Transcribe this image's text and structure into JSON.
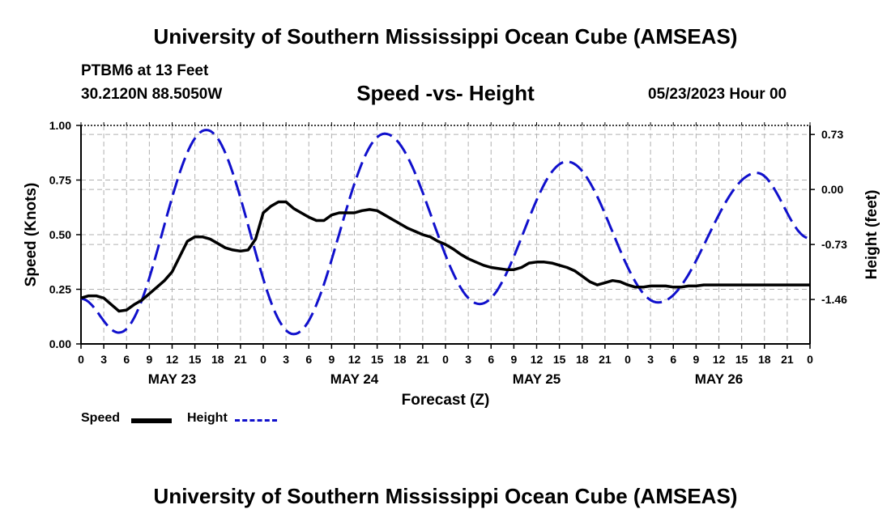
{
  "header": {
    "title": "University of Southern Mississippi Ocean Cube (AMSEAS)",
    "station": "PTBM6 at 13 Feet",
    "coords": "30.2120N  88.5050W",
    "subtitle": "Speed -vs- Height",
    "datetime": "05/23/2023 Hour 00"
  },
  "footer": {
    "title": "University of Southern Mississippi Ocean Cube (AMSEAS)"
  },
  "legend": {
    "speed_label": "Speed",
    "height_label": "Height"
  },
  "colors": {
    "speed": "#000000",
    "height": "#1010cc",
    "grid": "#b0b0b0"
  },
  "chart_data": {
    "type": "line",
    "title": "Speed -vs- Height",
    "xlabel": "Forecast (Z)",
    "ylabel": "Speed (Knots)",
    "ylabel_right": "Height (feet)",
    "xlim": [
      0,
      96
    ],
    "ylim": [
      0,
      1
    ],
    "ylim_right": [
      -2.05,
      0.85
    ],
    "x_tick_labels": [
      "0",
      "3",
      "6",
      "9",
      "12",
      "15",
      "18",
      "21",
      "0",
      "3",
      "6",
      "9",
      "12",
      "15",
      "18",
      "21",
      "0",
      "3",
      "6",
      "9",
      "12",
      "15",
      "18",
      "21",
      "0",
      "3",
      "6",
      "9",
      "12",
      "15",
      "18",
      "21",
      "0"
    ],
    "day_labels": [
      "MAY 23",
      "MAY 24",
      "MAY 25",
      "MAY 26"
    ],
    "y_ticks": [
      "0.00",
      "0.25",
      "0.50",
      "0.75",
      "1.00"
    ],
    "y_ticks_right": [
      "-1.46",
      "-0.73",
      "0.00",
      "0.73"
    ],
    "grid": true,
    "series": [
      {
        "name": "Speed",
        "axis": "left",
        "x": [
          0,
          1,
          2,
          3,
          4,
          5,
          6,
          7,
          8,
          9,
          10,
          11,
          12,
          13,
          14,
          15,
          16,
          17,
          18,
          19,
          20,
          21,
          22,
          23,
          24,
          25,
          26,
          27,
          28,
          29,
          30,
          31,
          32,
          33,
          34,
          35,
          36,
          37,
          38,
          39,
          40,
          41,
          42,
          43,
          44,
          45,
          46,
          47,
          48,
          49,
          50,
          51,
          52,
          53,
          54,
          55,
          56,
          57,
          58,
          59,
          60,
          61,
          62,
          63,
          64,
          65,
          66,
          67,
          68,
          69,
          70,
          71,
          72,
          73,
          74,
          75,
          76,
          77,
          78,
          79,
          80,
          81,
          82,
          83,
          84,
          85,
          86,
          87,
          88,
          89,
          90,
          91,
          92,
          93,
          94,
          95,
          96
        ],
        "values": [
          0.21,
          0.22,
          0.22,
          0.21,
          0.18,
          0.15,
          0.155,
          0.18,
          0.2,
          0.23,
          0.26,
          0.29,
          0.33,
          0.4,
          0.47,
          0.49,
          0.49,
          0.48,
          0.46,
          0.44,
          0.43,
          0.425,
          0.43,
          0.48,
          0.6,
          0.63,
          0.65,
          0.65,
          0.62,
          0.6,
          0.58,
          0.565,
          0.565,
          0.59,
          0.6,
          0.6,
          0.6,
          0.61,
          0.615,
          0.61,
          0.59,
          0.57,
          0.55,
          0.53,
          0.515,
          0.5,
          0.49,
          0.47,
          0.455,
          0.435,
          0.41,
          0.39,
          0.375,
          0.36,
          0.35,
          0.345,
          0.34,
          0.34,
          0.35,
          0.37,
          0.375,
          0.375,
          0.37,
          0.36,
          0.35,
          0.335,
          0.31,
          0.285,
          0.27,
          0.28,
          0.29,
          0.285,
          0.27,
          0.26,
          0.26,
          0.265,
          0.265,
          0.265,
          0.26,
          0.26,
          0.265,
          0.265,
          0.27,
          0.27,
          0.27,
          0.27,
          0.27,
          0.27,
          0.27,
          0.27,
          0.27,
          0.27,
          0.27,
          0.27,
          0.27,
          0.27,
          0.27
        ]
      },
      {
        "name": "Height",
        "axis": "right",
        "points": [
          [
            0,
            -1.45
          ],
          [
            5,
            -1.9
          ],
          [
            16.5,
            0.79
          ],
          [
            28,
            -1.92
          ],
          [
            40,
            0.74
          ],
          [
            52.5,
            -1.52
          ],
          [
            64,
            0.37
          ],
          [
            76,
            -1.5
          ],
          [
            89,
            0.22
          ],
          [
            96,
            -0.65
          ]
        ]
      }
    ]
  }
}
